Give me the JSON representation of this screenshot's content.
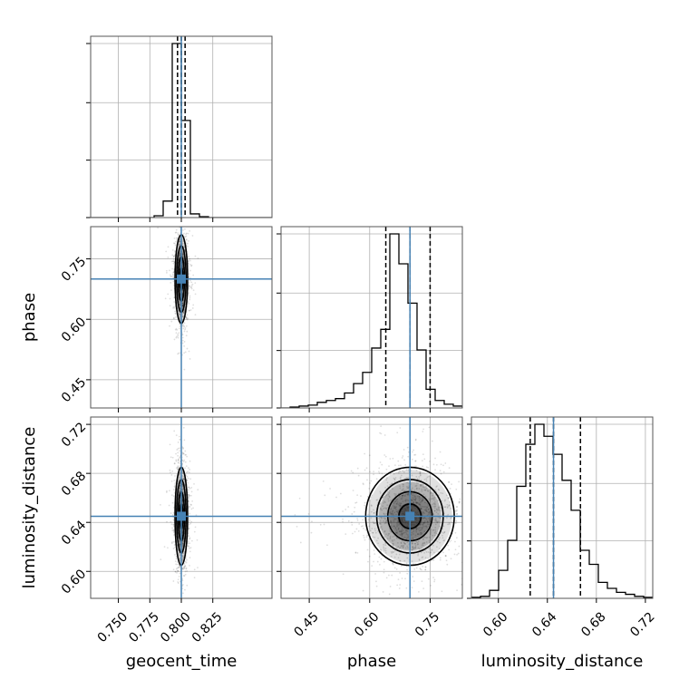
{
  "chart_data": {
    "type": "corner",
    "parameters": [
      "geocent_time",
      "phase",
      "luminosity_distance"
    ],
    "truths": {
      "geocent_time": 0.8,
      "phase": 0.7,
      "luminosity_distance": 0.645
    },
    "quantiles": {
      "geocent_time": [
        0.797,
        0.8,
        0.803
      ],
      "phase": [
        0.64,
        0.7,
        0.75
      ],
      "luminosity_distance": [
        0.626,
        0.645,
        0.667
      ]
    },
    "ranges": {
      "geocent_time": [
        0.728,
        0.872
      ],
      "phase": [
        0.38,
        0.83
      ],
      "luminosity_distance": [
        0.578,
        0.726
      ]
    },
    "ticks": {
      "geocent_time": [
        0.75,
        0.775,
        0.8,
        0.825
      ],
      "phase": [
        0.45,
        0.6,
        0.75
      ],
      "luminosity_distance": [
        0.6,
        0.64,
        0.68,
        0.72
      ]
    },
    "tick_labels": {
      "geocent_time": [
        "0.750",
        "0.775",
        "0.800",
        "0.825"
      ],
      "phase": [
        "0.45",
        "0.60",
        "0.75"
      ],
      "luminosity_distance": [
        "0.60",
        "0.64",
        "0.68",
        "0.72"
      ]
    },
    "histograms": {
      "geocent_time": {
        "edges": [
          0.728,
          0.7352,
          0.7424,
          0.7496,
          0.7568,
          0.764,
          0.7712,
          0.7784,
          0.7856,
          0.7928,
          0.8,
          0.8072,
          0.8144,
          0.8216,
          0.8288,
          0.836,
          0.8432,
          0.8504,
          0.8576,
          0.8648,
          0.872
        ],
        "counts": [
          0,
          0,
          0,
          0,
          0,
          0,
          0,
          0.01,
          0.09,
          0.95,
          0.53,
          0.02,
          0.005,
          0,
          0,
          0,
          0,
          0,
          0,
          0
        ]
      },
      "phase": {
        "edges": [
          0.38,
          0.4025,
          0.425,
          0.4475,
          0.47,
          0.4925,
          0.515,
          0.5375,
          0.56,
          0.5825,
          0.605,
          0.6275,
          0.65,
          0.6725,
          0.695,
          0.7175,
          0.74,
          0.7625,
          0.785,
          0.8075,
          0.83
        ],
        "counts": [
          0.0,
          0.005,
          0.01,
          0.015,
          0.03,
          0.04,
          0.05,
          0.08,
          0.13,
          0.19,
          0.32,
          0.42,
          0.93,
          0.77,
          0.56,
          0.31,
          0.1,
          0.04,
          0.02,
          0.01
        ]
      },
      "luminosity_distance": {
        "edges": [
          0.578,
          0.5854,
          0.5928,
          0.6002,
          0.6076,
          0.615,
          0.6224,
          0.6298,
          0.6372,
          0.6446,
          0.652,
          0.6594,
          0.6668,
          0.6742,
          0.6816,
          0.689,
          0.6964,
          0.7038,
          0.7112,
          0.7186,
          0.726
        ],
        "counts": [
          0.005,
          0.01,
          0.04,
          0.14,
          0.29,
          0.56,
          0.77,
          0.87,
          0.81,
          0.72,
          0.59,
          0.44,
          0.24,
          0.17,
          0.08,
          0.05,
          0.03,
          0.02,
          0.01,
          0.005
        ]
      }
    },
    "scatter_sigma": {
      "geocent_time": 0.0025,
      "phase": 0.055,
      "luminosity_distance": 0.02
    },
    "contour_levels_sigma": [
      0.5,
      1.0,
      1.5,
      2.0
    ],
    "grid": true
  }
}
